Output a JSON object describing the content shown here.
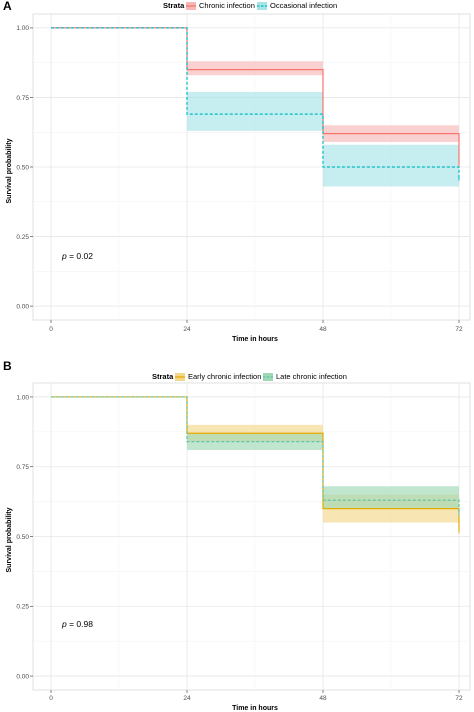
{
  "panels": [
    {
      "panel_label": "A",
      "legend_title": "Strata",
      "p_value_label": "p",
      "p_value_text": " = 0.02"
    },
    {
      "panel_label": "B",
      "legend_title": "Strata",
      "p_value_label": "p",
      "p_value_text": " = 0.98"
    }
  ],
  "chart_data": [
    {
      "type": "line",
      "subtype": "step",
      "xlabel": "Time in hours",
      "ylabel": "Survival probability",
      "xlim": [
        0,
        72
      ],
      "ylim": [
        0,
        1
      ],
      "xticks": [
        0,
        24,
        48,
        72
      ],
      "yticks": [
        0.0,
        0.25,
        0.5,
        0.75,
        1.0
      ],
      "ytick_labels": [
        "0.00",
        "0.25",
        "0.50",
        "0.75",
        "1.00"
      ],
      "grid": true,
      "legend_position": "top",
      "series": [
        {
          "name": "Chronic infection",
          "color": "#F8766D",
          "band_color": "#F8B8B8",
          "linestyle": "solid",
          "x": [
            0,
            24,
            48,
            72
          ],
          "y": [
            1.0,
            0.85,
            0.62,
            0.51
          ],
          "lower": [
            1.0,
            0.83,
            0.59,
            0.51
          ],
          "upper": [
            1.0,
            0.88,
            0.65,
            0.51
          ]
        },
        {
          "name": "Occasional infection",
          "color": "#00BFC4",
          "band_color": "#A8E3E6",
          "linestyle": "dashed",
          "x": [
            0,
            24,
            48,
            72
          ],
          "y": [
            1.0,
            0.69,
            0.5,
            0.46
          ],
          "lower": [
            1.0,
            0.63,
            0.43,
            0.46
          ],
          "upper": [
            1.0,
            0.77,
            0.58,
            0.46
          ]
        }
      ]
    },
    {
      "type": "line",
      "subtype": "step",
      "xlabel": "Time in hours",
      "ylabel": "Survival probability",
      "xlim": [
        0,
        72
      ],
      "ylim": [
        0,
        1
      ],
      "xticks": [
        0,
        24,
        48,
        72
      ],
      "yticks": [
        0.0,
        0.25,
        0.5,
        0.75,
        1.0
      ],
      "ytick_labels": [
        "0.00",
        "0.25",
        "0.50",
        "0.75",
        "1.00"
      ],
      "grid": true,
      "legend_position": "top",
      "series": [
        {
          "name": "Early chronic infection",
          "color": "#E6AB02",
          "band_color": "#F5D78C",
          "linestyle": "solid",
          "x": [
            0,
            24,
            48,
            72
          ],
          "y": [
            1.0,
            0.87,
            0.6,
            0.52
          ],
          "lower": [
            1.0,
            0.84,
            0.55,
            0.52
          ],
          "upper": [
            1.0,
            0.9,
            0.65,
            0.52
          ]
        },
        {
          "name": "Late chronic infection",
          "color": "#66C2A5",
          "band_color": "#9ED9B5",
          "linestyle": "dashed",
          "x": [
            0,
            24,
            48,
            72
          ],
          "y": [
            1.0,
            0.84,
            0.63,
            0.58
          ],
          "lower": [
            1.0,
            0.81,
            0.6,
            0.58
          ],
          "upper": [
            1.0,
            0.87,
            0.68,
            0.58
          ]
        }
      ]
    }
  ]
}
